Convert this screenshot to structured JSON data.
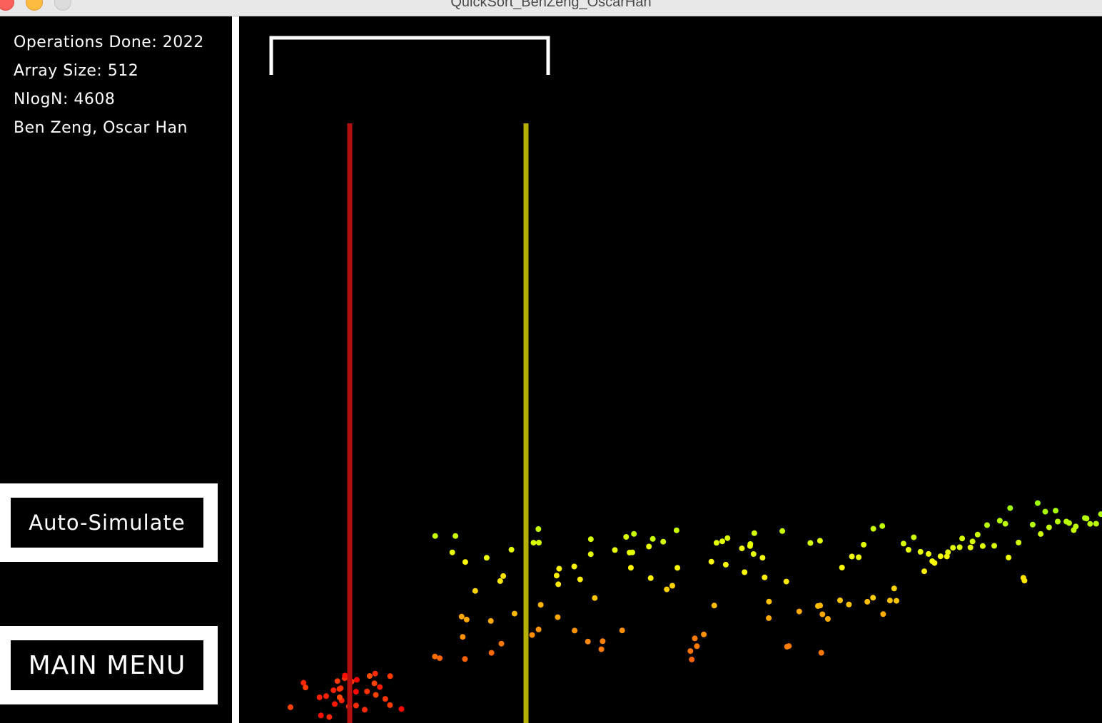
{
  "window": {
    "title": "QuickSort_BenZeng_OscarHan"
  },
  "stats": {
    "operations": "Operations Done: 2022",
    "array_size": "Array Size: 512",
    "nlogn": "NlogN: 4608",
    "authors": "Ben Zeng, Oscar Han"
  },
  "buttons": {
    "auto_simulate": "Auto-Simulate",
    "main_menu": "MAIN MENU"
  },
  "visualization": {
    "colors": {
      "pivot_low_line": "#b30f0f",
      "pivot_high_line": "#b5b007",
      "bracket": "#ffffff",
      "dot_gradient_start": "#ff1e00",
      "dot_gradient_end": "#0018ff"
    },
    "array_size": 512,
    "low_pointer_index": 38,
    "high_pointer_index": 112
  }
}
